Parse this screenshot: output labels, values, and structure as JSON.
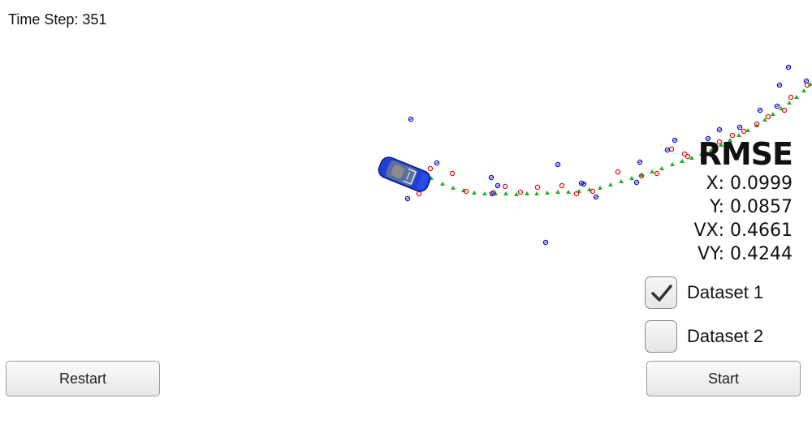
{
  "status": {
    "timestep_label": "Time Step: 351"
  },
  "rmse": {
    "title": "RMSE",
    "x_line": "X: 0.0999",
    "y_line": "Y: 0.0857",
    "vx_line": "VX: 0.4661",
    "vy_line": "VY: 0.4244"
  },
  "datasets": [
    {
      "label": "Dataset 1",
      "checked": true
    },
    {
      "label": "Dataset 2",
      "checked": false
    }
  ],
  "buttons": {
    "restart_label": "Restart",
    "start_label": "Start"
  },
  "colors": {
    "estimate_marker": "#1fb21f",
    "lidar_marker": "#e01010",
    "radar_marker": "#1010c8",
    "car_body": "#1f3fd6",
    "check_mark": "#333333"
  },
  "icons": {
    "car": "car-icon",
    "check": "check-icon"
  }
}
